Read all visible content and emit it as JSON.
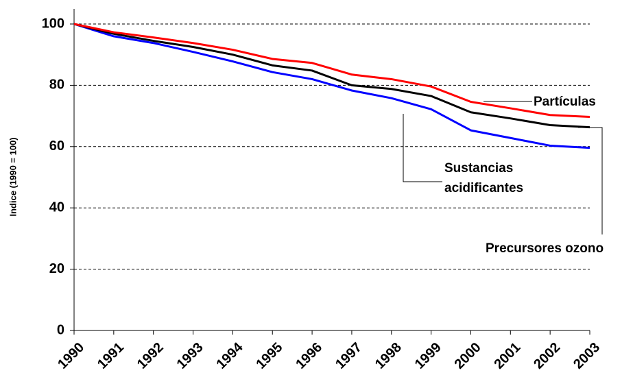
{
  "chart_data": {
    "type": "line",
    "y_label": "Indice (1990 = 100)",
    "categories": [
      "1990",
      "1991",
      "1992",
      "1993",
      "1994",
      "1995",
      "1996",
      "1997",
      "1998",
      "1999",
      "2000",
      "2001",
      "2002",
      "2003"
    ],
    "series": [
      {
        "name": "Partículas",
        "color": "#ff0000",
        "values": [
          100,
          97.3,
          95.6,
          93.8,
          91.6,
          88.6,
          87.3,
          83.5,
          82,
          79.6,
          74.6,
          72.5,
          70.3,
          69.7
        ]
      },
      {
        "name": "Precursores ozono",
        "color": "#000000",
        "values": [
          100,
          96.8,
          94.5,
          92.5,
          90,
          86.5,
          84.8,
          80,
          78.8,
          76.5,
          71.2,
          69.2,
          67,
          66.3
        ]
      },
      {
        "name": "Sustancias acidificantes",
        "color": "#0000ff",
        "values": [
          100,
          96,
          93.8,
          90.9,
          87.8,
          84.3,
          82,
          78.3,
          75.8,
          72.2,
          65.3,
          62.8,
          60.3,
          59.6
        ]
      }
    ],
    "ylim": [
      0,
      100
    ],
    "yticks": [
      0,
      20,
      40,
      60,
      80,
      100
    ],
    "grid": true
  }
}
